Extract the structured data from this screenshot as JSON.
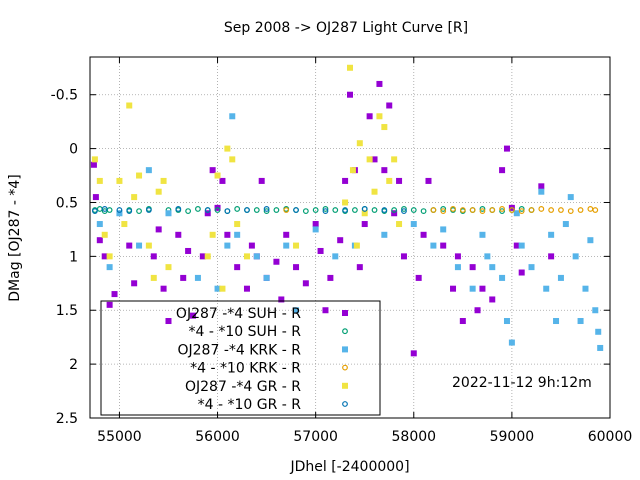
{
  "chart_data": {
    "type": "scatter",
    "title": "Sep 2008 ->   OJ287 Light Curve [R]",
    "xlabel": "JDhel [-2400000]",
    "ylabel": "DMag [OJ287 - *4]",
    "xlim": [
      54700,
      60000
    ],
    "ylim": [
      2.5,
      -0.85
    ],
    "y_inverted": true,
    "grid": true,
    "legend_position": "bottom-left",
    "timestamp": "2022-11-12  9h:12m",
    "xticks": [
      {
        "value": 55000,
        "label": "55000"
      },
      {
        "value": 56000,
        "label": "56000"
      },
      {
        "value": 57000,
        "label": "57000"
      },
      {
        "value": 58000,
        "label": "58000"
      },
      {
        "value": 59000,
        "label": "59000"
      },
      {
        "value": 60000,
        "label": "60000"
      }
    ],
    "yticks": [
      {
        "value": -0.5,
        "label": "-0.5"
      },
      {
        "value": 0,
        "label": "0"
      },
      {
        "value": 0.5,
        "label": "0.5"
      },
      {
        "value": 1,
        "label": "1"
      },
      {
        "value": 1.5,
        "label": "1.5"
      },
      {
        "value": 2,
        "label": "2"
      },
      {
        "value": 2.5,
        "label": "2.5"
      }
    ],
    "series": [
      {
        "name": "OJ287 -*4 SUH - R",
        "color": "#9400d3",
        "marker": "square",
        "points": [
          [
            54740,
            0.15
          ],
          [
            54760,
            0.45
          ],
          [
            54800,
            0.85
          ],
          [
            54850,
            1.0
          ],
          [
            54900,
            1.45
          ],
          [
            54950,
            1.35
          ],
          [
            55100,
            0.9
          ],
          [
            55150,
            1.25
          ],
          [
            55350,
            1.0
          ],
          [
            55400,
            0.75
          ],
          [
            55450,
            1.3
          ],
          [
            55500,
            1.6
          ],
          [
            55600,
            0.8
          ],
          [
            55650,
            1.2
          ],
          [
            55700,
            0.95
          ],
          [
            55750,
            1.55
          ],
          [
            55850,
            1.0
          ],
          [
            55900,
            0.6
          ],
          [
            55950,
            0.2
          ],
          [
            56000,
            0.55
          ],
          [
            56050,
            0.3
          ],
          [
            56100,
            0.8
          ],
          [
            56200,
            1.1
          ],
          [
            56300,
            1.3
          ],
          [
            56350,
            0.9
          ],
          [
            56400,
            1.0
          ],
          [
            56450,
            0.3
          ],
          [
            56500,
            1.2
          ],
          [
            56600,
            1.05
          ],
          [
            56650,
            1.4
          ],
          [
            56700,
            0.8
          ],
          [
            56800,
            1.1
          ],
          [
            56900,
            1.25
          ],
          [
            57000,
            0.7
          ],
          [
            57050,
            0.95
          ],
          [
            57100,
            1.5
          ],
          [
            57150,
            1.2
          ],
          [
            57250,
            0.85
          ],
          [
            57300,
            0.3
          ],
          [
            57350,
            -0.5
          ],
          [
            57400,
            0.2
          ],
          [
            57450,
            1.1
          ],
          [
            57500,
            0.7
          ],
          [
            57550,
            -0.3
          ],
          [
            57600,
            0.1
          ],
          [
            57650,
            -0.6
          ],
          [
            57700,
            0.2
          ],
          [
            57750,
            -0.4
          ],
          [
            57800,
            0.6
          ],
          [
            57850,
            0.3
          ],
          [
            57900,
            1.0
          ],
          [
            58000,
            1.9
          ],
          [
            58050,
            1.2
          ],
          [
            58100,
            0.8
          ],
          [
            58150,
            0.3
          ],
          [
            58300,
            0.9
          ],
          [
            58400,
            1.3
          ],
          [
            58450,
            1.0
          ],
          [
            58500,
            1.6
          ],
          [
            58600,
            1.1
          ],
          [
            58650,
            1.5
          ],
          [
            58700,
            1.3
          ],
          [
            58800,
            1.4
          ],
          [
            58900,
            0.2
          ],
          [
            58950,
            0.0
          ],
          [
            59000,
            0.55
          ],
          [
            59050,
            0.9
          ],
          [
            59100,
            1.15
          ],
          [
            59300,
            0.35
          ],
          [
            59400,
            1.0
          ]
        ]
      },
      {
        "name": "*4 - *10 SUH - R",
        "color": "#009e73",
        "marker": "circle",
        "points": [
          [
            54750,
            0.57
          ],
          [
            54800,
            0.56
          ],
          [
            54850,
            0.58
          ],
          [
            54900,
            0.57
          ],
          [
            55100,
            0.57
          ],
          [
            55200,
            0.58
          ],
          [
            55300,
            0.56
          ],
          [
            55500,
            0.57
          ],
          [
            55600,
            0.57
          ],
          [
            55700,
            0.58
          ],
          [
            55800,
            0.56
          ],
          [
            55900,
            0.57
          ],
          [
            56000,
            0.57
          ],
          [
            56100,
            0.58
          ],
          [
            56200,
            0.56
          ],
          [
            56300,
            0.57
          ],
          [
            56400,
            0.57
          ],
          [
            56500,
            0.58
          ],
          [
            56600,
            0.57
          ],
          [
            56700,
            0.56
          ],
          [
            56800,
            0.57
          ],
          [
            56900,
            0.58
          ],
          [
            57000,
            0.57
          ],
          [
            57100,
            0.56
          ],
          [
            57200,
            0.57
          ],
          [
            57300,
            0.58
          ],
          [
            57400,
            0.57
          ],
          [
            57500,
            0.56
          ],
          [
            57600,
            0.57
          ],
          [
            57700,
            0.58
          ],
          [
            57800,
            0.57
          ],
          [
            57900,
            0.56
          ],
          [
            58000,
            0.57
          ],
          [
            58100,
            0.58
          ],
          [
            58200,
            0.57
          ],
          [
            58300,
            0.56
          ],
          [
            58400,
            0.57
          ],
          [
            58500,
            0.58
          ],
          [
            58600,
            0.57
          ],
          [
            58700,
            0.56
          ],
          [
            58800,
            0.57
          ],
          [
            58900,
            0.58
          ],
          [
            59000,
            0.57
          ],
          [
            59100,
            0.56
          ],
          [
            59200,
            0.57
          ]
        ]
      },
      {
        "name": "OJ287 -*4 KRK - R",
        "color": "#56b4e9",
        "marker": "square",
        "points": [
          [
            54800,
            0.7
          ],
          [
            54900,
            1.1
          ],
          [
            55000,
            0.6
          ],
          [
            55200,
            0.9
          ],
          [
            55300,
            0.2
          ],
          [
            55500,
            0.6
          ],
          [
            55800,
            1.2
          ],
          [
            56000,
            1.3
          ],
          [
            56100,
            0.9
          ],
          [
            56150,
            -0.3
          ],
          [
            56200,
            0.8
          ],
          [
            56400,
            1.0
          ],
          [
            56500,
            1.2
          ],
          [
            56700,
            0.9
          ],
          [
            56800,
            1.5
          ],
          [
            57000,
            0.75
          ],
          [
            57200,
            1.0
          ],
          [
            57400,
            0.9
          ],
          [
            57700,
            0.8
          ],
          [
            58000,
            0.7
          ],
          [
            58200,
            0.9
          ],
          [
            58300,
            0.75
          ],
          [
            58450,
            1.1
          ],
          [
            58600,
            1.3
          ],
          [
            58700,
            0.8
          ],
          [
            58750,
            1.0
          ],
          [
            58800,
            1.1
          ],
          [
            58900,
            1.2
          ],
          [
            58950,
            1.6
          ],
          [
            59000,
            1.8
          ],
          [
            59050,
            0.6
          ],
          [
            59100,
            0.9
          ],
          [
            59200,
            1.1
          ],
          [
            59300,
            0.4
          ],
          [
            59350,
            1.3
          ],
          [
            59400,
            0.8
          ],
          [
            59450,
            1.6
          ],
          [
            59500,
            1.2
          ],
          [
            59550,
            0.7
          ],
          [
            59600,
            0.45
          ],
          [
            59650,
            1.0
          ],
          [
            59700,
            1.6
          ],
          [
            59750,
            1.3
          ],
          [
            59800,
            0.85
          ],
          [
            59850,
            1.5
          ],
          [
            59880,
            1.7
          ],
          [
            59900,
            1.85
          ]
        ]
      },
      {
        "name": "*4 - *10 KRK - R",
        "color": "#e69f00",
        "marker": "circle",
        "points": [
          [
            56700,
            0.57
          ],
          [
            58200,
            0.57
          ],
          [
            58300,
            0.58
          ],
          [
            58400,
            0.56
          ],
          [
            58500,
            0.57
          ],
          [
            58600,
            0.57
          ],
          [
            58700,
            0.58
          ],
          [
            58800,
            0.57
          ],
          [
            58900,
            0.56
          ],
          [
            59000,
            0.57
          ],
          [
            59100,
            0.58
          ],
          [
            59200,
            0.57
          ],
          [
            59300,
            0.56
          ],
          [
            59400,
            0.57
          ],
          [
            59500,
            0.57
          ],
          [
            59600,
            0.58
          ],
          [
            59700,
            0.57
          ],
          [
            59800,
            0.56
          ],
          [
            59850,
            0.57
          ]
        ]
      },
      {
        "name": "OJ287 -*4 GR - R",
        "color": "#f0e442",
        "marker": "square",
        "points": [
          [
            54750,
            0.1
          ],
          [
            54800,
            0.3
          ],
          [
            54850,
            0.8
          ],
          [
            54900,
            1.0
          ],
          [
            55000,
            0.3
          ],
          [
            55050,
            0.7
          ],
          [
            55100,
            -0.4
          ],
          [
            55150,
            0.45
          ],
          [
            55200,
            0.25
          ],
          [
            55300,
            0.9
          ],
          [
            55350,
            1.2
          ],
          [
            55400,
            0.4
          ],
          [
            55450,
            0.3
          ],
          [
            55500,
            1.1
          ],
          [
            55900,
            1.0
          ],
          [
            55950,
            0.8
          ],
          [
            56000,
            0.25
          ],
          [
            56050,
            1.3
          ],
          [
            56100,
            0.0
          ],
          [
            56150,
            0.1
          ],
          [
            56200,
            0.7
          ],
          [
            56300,
            1.0
          ],
          [
            56800,
            0.9
          ],
          [
            57300,
            0.5
          ],
          [
            57350,
            -0.75
          ],
          [
            57380,
            0.2
          ],
          [
            57420,
            0.9
          ],
          [
            57450,
            -0.05
          ],
          [
            57500,
            0.6
          ],
          [
            57550,
            0.1
          ],
          [
            57600,
            0.4
          ],
          [
            57650,
            -0.3
          ],
          [
            57700,
            -0.2
          ],
          [
            57750,
            0.3
          ],
          [
            57800,
            0.1
          ],
          [
            57850,
            0.7
          ]
        ]
      },
      {
        "name": "*4 - *10 GR - R",
        "color": "#0072b2",
        "marker": "circle",
        "points": [
          [
            54750,
            0.58
          ],
          [
            54850,
            0.56
          ],
          [
            55000,
            0.57
          ],
          [
            55100,
            0.58
          ],
          [
            55300,
            0.57
          ],
          [
            55600,
            0.56
          ],
          [
            55900,
            0.57
          ],
          [
            56100,
            0.58
          ],
          [
            56300,
            0.57
          ],
          [
            56500,
            0.56
          ],
          [
            56800,
            0.57
          ],
          [
            57100,
            0.58
          ],
          [
            57300,
            0.57
          ],
          [
            57500,
            0.56
          ],
          [
            57700,
            0.57
          ],
          [
            57900,
            0.58
          ]
        ]
      }
    ]
  }
}
